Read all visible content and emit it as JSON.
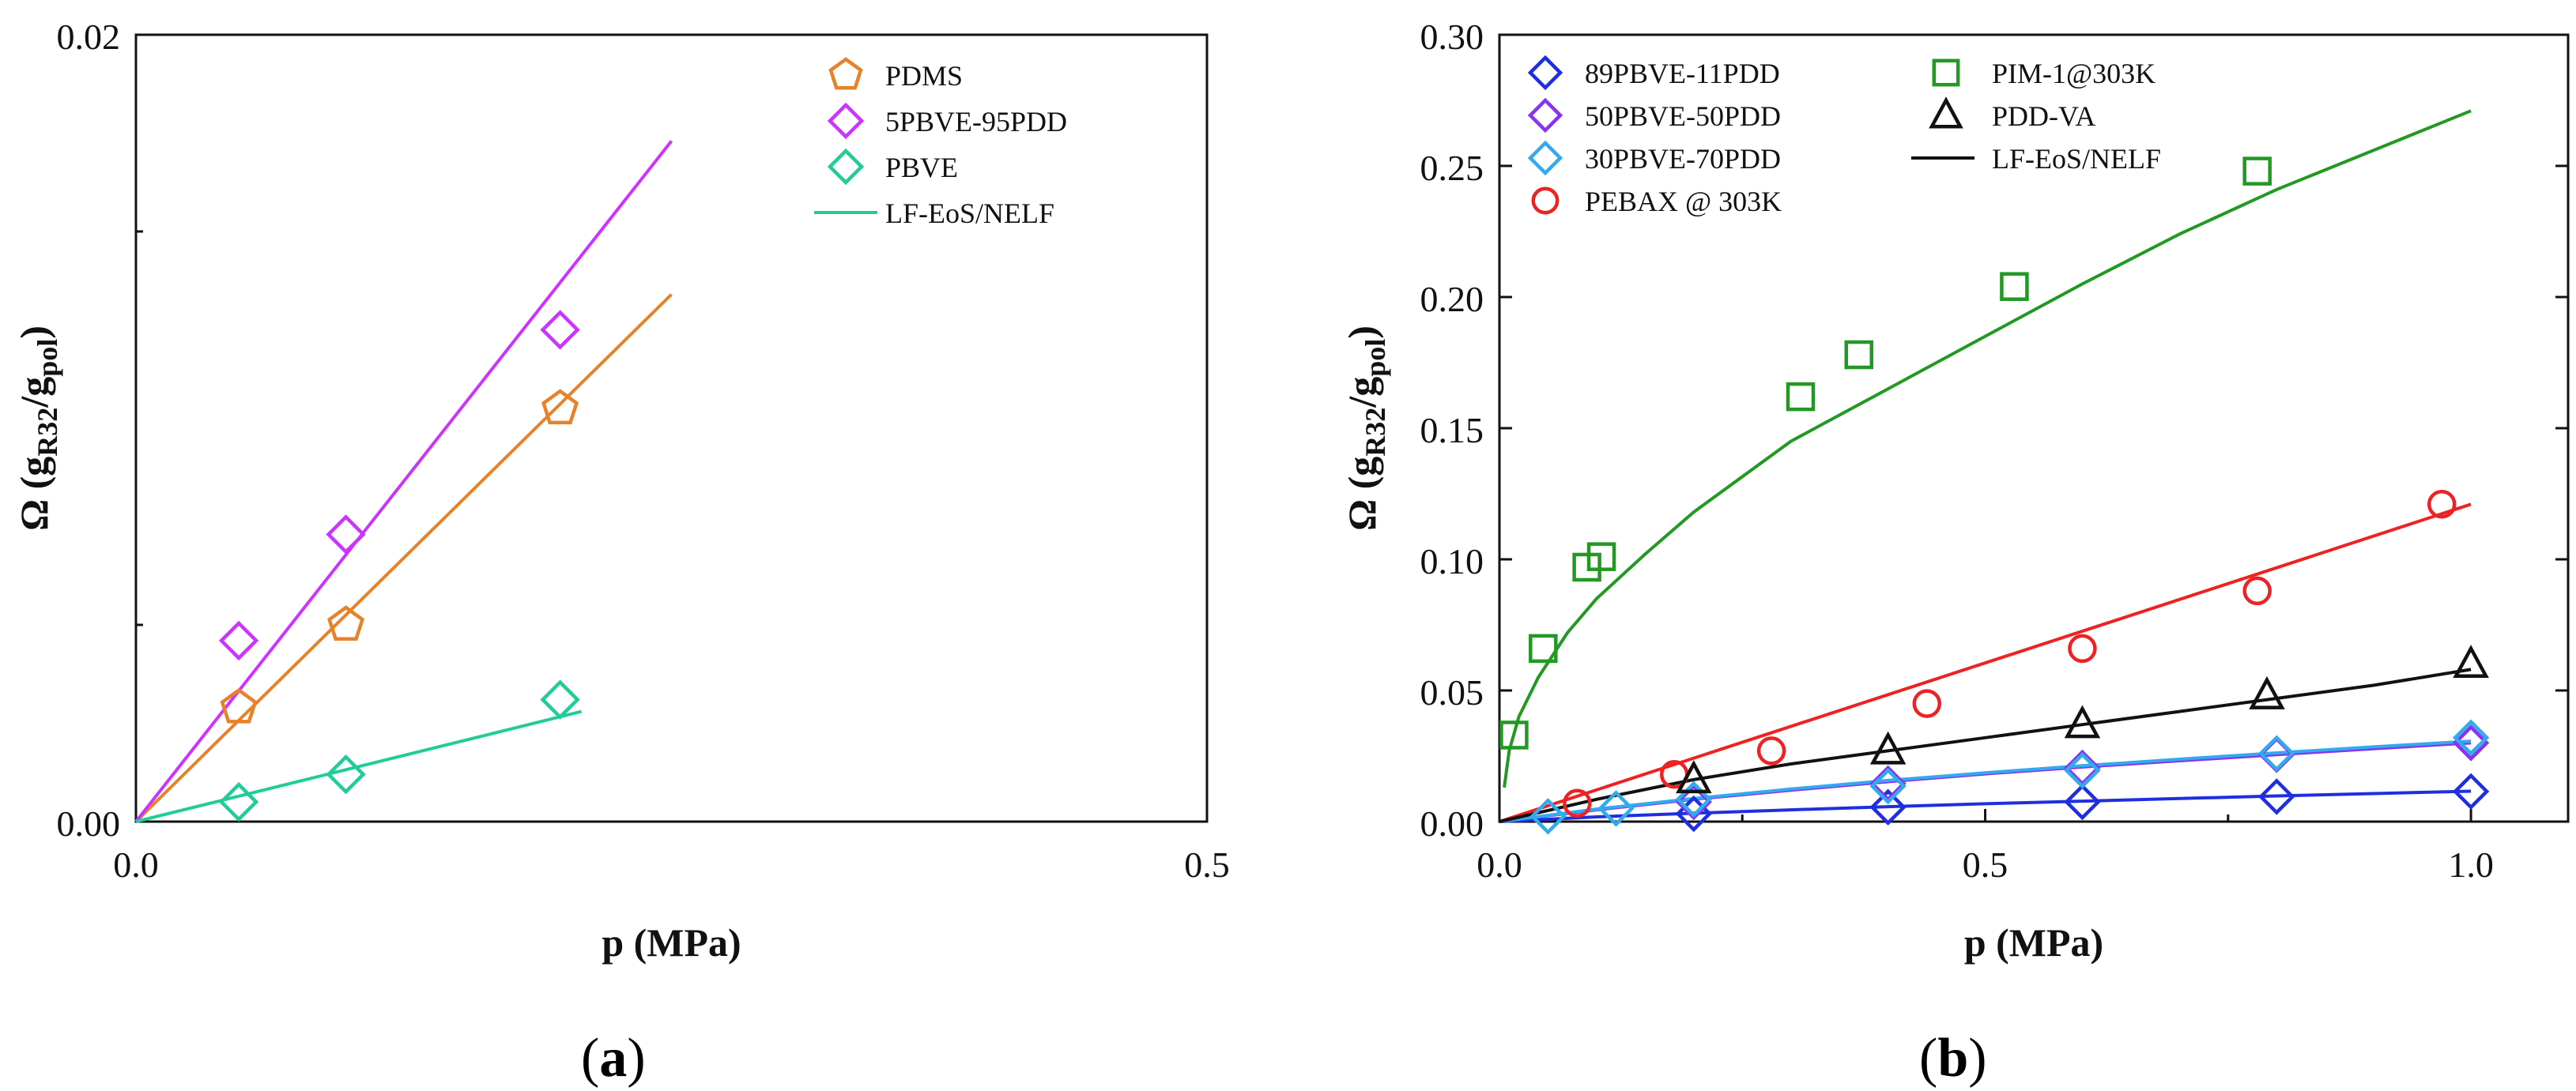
{
  "chart_data": [
    {
      "type": "scatter",
      "panel_label": "a",
      "xlabel": "p (MPa)",
      "ylabel": "Ω (g",
      "ylabel_sub1": "R32",
      "ylabel_mid": "/g",
      "ylabel_sub2": "pol",
      "ylabel_end": ")",
      "xlim": [
        0.0,
        0.5
      ],
      "ylim": [
        0.0,
        0.02
      ],
      "xticks": [
        "0.0",
        "0.5"
      ],
      "yticks": [
        "0.00",
        "0.02"
      ],
      "legend_position": "top-right",
      "legend": [
        "PDMS",
        "5PBVE-95PDD",
        "PBVE",
        "LF-EoS/NELF"
      ],
      "series": [
        {
          "name": "PDMS",
          "color": "#E8822A",
          "marker": "pentagon",
          "points": [
            [
              0.048,
              0.0029
            ],
            [
              0.098,
              0.005
            ],
            [
              0.198,
              0.0105
            ]
          ],
          "fit": [
            [
              0.0,
              0.0
            ],
            [
              0.25,
              0.0134
            ]
          ]
        },
        {
          "name": "5PBVE-95PDD",
          "color": "#CC33FF",
          "marker": "diamond",
          "points": [
            [
              0.048,
              0.0046
            ],
            [
              0.098,
              0.0073
            ],
            [
              0.198,
              0.0125
            ]
          ],
          "fit": [
            [
              0.0,
              0.0
            ],
            [
              0.25,
              0.0173
            ]
          ]
        },
        {
          "name": "PBVE",
          "color": "#22CC99",
          "marker": "diamond",
          "points": [
            [
              0.048,
              0.0005
            ],
            [
              0.098,
              0.0012
            ],
            [
              0.198,
              0.0031
            ]
          ],
          "fit": [
            [
              0.0,
              0.0
            ],
            [
              0.208,
              0.0028
            ]
          ]
        }
      ],
      "fit_line_color": "#22CC99"
    },
    {
      "type": "scatter",
      "panel_label": "b",
      "xlabel": "p (MPa)",
      "ylabel": "Ω (g",
      "ylabel_sub1": "R32",
      "ylabel_mid": "/g",
      "ylabel_sub2": "pol",
      "ylabel_end": ")",
      "xlim": [
        0.0,
        1.1
      ],
      "ylim": [
        0.0,
        0.3
      ],
      "xticks": [
        "0.0",
        "0.5",
        "1.0"
      ],
      "yticks": [
        "0.00",
        "0.05",
        "0.10",
        "0.15",
        "0.20",
        "0.25",
        "0.30"
      ],
      "legend_position": "top-left",
      "legend_col1": [
        "89PBVE-11PDD",
        "50PBVE-50PDD",
        "30PBVE-70PDD",
        "PEBAX @ 303K"
      ],
      "legend_col2": [
        "PIM-1@303K",
        "PDD-VA",
        "LF-EoS/NELF"
      ],
      "series": [
        {
          "name": "89PBVE-11PDD",
          "color": "#1F2FE0",
          "marker": "diamond",
          "points": [
            [
              0.2,
              0.003
            ],
            [
              0.4,
              0.0055
            ],
            [
              0.6,
              0.0075
            ],
            [
              0.8,
              0.0095
            ],
            [
              1.0,
              0.0115
            ]
          ],
          "fit": [
            [
              0.0,
              0.0
            ],
            [
              0.1,
              0.0018
            ],
            [
              0.2,
              0.0032
            ],
            [
              0.3,
              0.0045
            ],
            [
              0.4,
              0.0057
            ],
            [
              0.5,
              0.0068
            ],
            [
              0.6,
              0.0078
            ],
            [
              0.7,
              0.0088
            ],
            [
              0.8,
              0.0098
            ],
            [
              0.9,
              0.0107
            ],
            [
              1.0,
              0.0116
            ]
          ],
          "fit_color": "#1F2FE0"
        },
        {
          "name": "50PBVE-50PDD",
          "color": "#8833EE",
          "marker": "diamond",
          "points": [
            [
              0.2,
              0.0075
            ],
            [
              0.4,
              0.0145
            ],
            [
              0.6,
              0.0205
            ],
            [
              0.8,
              0.0255
            ],
            [
              1.0,
              0.03
            ]
          ],
          "fit": [
            [
              0.0,
              0.0
            ],
            [
              0.1,
              0.0045
            ],
            [
              0.2,
              0.0085
            ],
            [
              0.3,
              0.012
            ],
            [
              0.4,
              0.0152
            ],
            [
              0.5,
              0.0182
            ],
            [
              0.6,
              0.0208
            ],
            [
              0.7,
              0.0232
            ],
            [
              0.8,
              0.0255
            ],
            [
              0.9,
              0.0278
            ],
            [
              1.0,
              0.03
            ]
          ],
          "fit_color": "#8833EE"
        },
        {
          "name": "30PBVE-70PDD",
          "color": "#33AAEE",
          "marker": "diamond",
          "points": [
            [
              0.05,
              0.002
            ],
            [
              0.12,
              0.005
            ],
            [
              0.2,
              0.0085
            ],
            [
              0.4,
              0.0135
            ],
            [
              0.6,
              0.0195
            ],
            [
              0.8,
              0.026
            ],
            [
              1.0,
              0.032
            ]
          ],
          "fit": [
            [
              0.0,
              0.0
            ],
            [
              0.1,
              0.0048
            ],
            [
              0.2,
              0.0088
            ],
            [
              0.3,
              0.0124
            ],
            [
              0.4,
              0.0157
            ],
            [
              0.5,
              0.0186
            ],
            [
              0.6,
              0.0213
            ],
            [
              0.7,
              0.0238
            ],
            [
              0.8,
              0.0262
            ],
            [
              0.9,
              0.0285
            ],
            [
              1.0,
              0.0307
            ]
          ],
          "fit_color": "#33AAEE"
        },
        {
          "name": "PEBAX @ 303K",
          "color": "#EE2222",
          "marker": "circle",
          "points": [
            [
              0.08,
              0.007
            ],
            [
              0.18,
              0.018
            ],
            [
              0.28,
              0.027
            ],
            [
              0.44,
              0.045
            ],
            [
              0.6,
              0.066
            ],
            [
              0.78,
              0.088
            ],
            [
              0.97,
              0.121
            ]
          ],
          "fit": [
            [
              0.0,
              0.0
            ],
            [
              1.0,
              0.121
            ]
          ],
          "fit_color": "#EE2222"
        },
        {
          "name": "PIM-1@303K",
          "color": "#229922",
          "marker": "square",
          "points": [
            [
              0.015,
              0.033
            ],
            [
              0.045,
              0.066
            ],
            [
              0.09,
              0.097
            ],
            [
              0.105,
              0.101
            ],
            [
              0.31,
              0.162
            ],
            [
              0.37,
              0.178
            ],
            [
              0.53,
              0.204
            ],
            [
              0.78,
              0.248
            ]
          ],
          "fit": [
            [
              0.005,
              0.013
            ],
            [
              0.01,
              0.027
            ],
            [
              0.02,
              0.04
            ],
            [
              0.04,
              0.055
            ],
            [
              0.07,
              0.072
            ],
            [
              0.1,
              0.085
            ],
            [
              0.15,
              0.102
            ],
            [
              0.2,
              0.118
            ],
            [
              0.3,
              0.145
            ],
            [
              0.4,
              0.165
            ],
            [
              0.5,
              0.185
            ],
            [
              0.6,
              0.205
            ],
            [
              0.7,
              0.224
            ],
            [
              0.8,
              0.241
            ],
            [
              0.9,
              0.256
            ],
            [
              1.0,
              0.271
            ]
          ],
          "fit_color": "#229922"
        },
        {
          "name": "PDD-VA",
          "color": "#111111",
          "marker": "triangle",
          "points": [
            [
              0.2,
              0.016
            ],
            [
              0.4,
              0.027
            ],
            [
              0.6,
              0.037
            ],
            [
              0.79,
              0.048
            ],
            [
              1.0,
              0.06
            ]
          ],
          "fit": [
            [
              0.0,
              0.0
            ],
            [
              0.1,
              0.0085
            ],
            [
              0.2,
              0.016
            ],
            [
              0.3,
              0.022
            ],
            [
              0.4,
              0.027
            ],
            [
              0.5,
              0.032
            ],
            [
              0.6,
              0.037
            ],
            [
              0.7,
              0.042
            ],
            [
              0.8,
              0.047
            ],
            [
              0.9,
              0.052
            ],
            [
              1.0,
              0.058
            ]
          ],
          "fit_color": "#111111"
        }
      ]
    }
  ]
}
